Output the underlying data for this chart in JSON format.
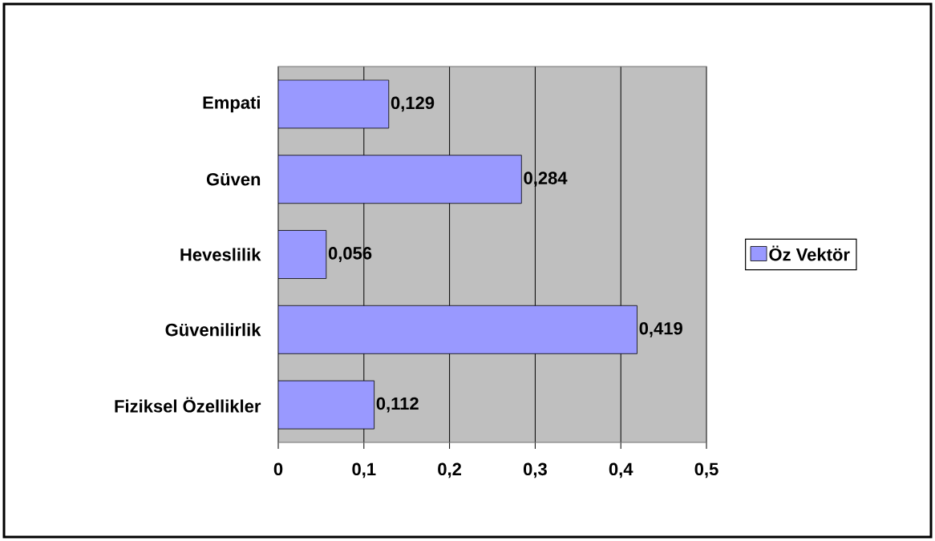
{
  "chart_data": {
    "type": "bar",
    "orientation": "horizontal",
    "categories": [
      "Empati",
      "Güven",
      "Heveslilik",
      "Güvenilirlik",
      "Fiziksel Özellikler"
    ],
    "series": [
      {
        "name": "Öz Vektör",
        "color": "#9999ff",
        "values": [
          0.129,
          0.284,
          0.056,
          0.419,
          0.112
        ],
        "value_labels": [
          "0,129",
          "0,284",
          "0,056",
          "0,419",
          "0,112"
        ]
      }
    ],
    "xlim": [
      0,
      0.5
    ],
    "xticks": [
      0,
      {
        "value": 0.1,
        "label": "0,1"
      },
      {
        "value": 0.2,
        "label": "0,2"
      },
      {
        "value": 0.3,
        "label": "0,3"
      },
      {
        "value": 0.4,
        "label": "0,4"
      },
      {
        "value": 0.5,
        "label": "0,5"
      }
    ],
    "grid": "x",
    "legend": "right"
  }
}
